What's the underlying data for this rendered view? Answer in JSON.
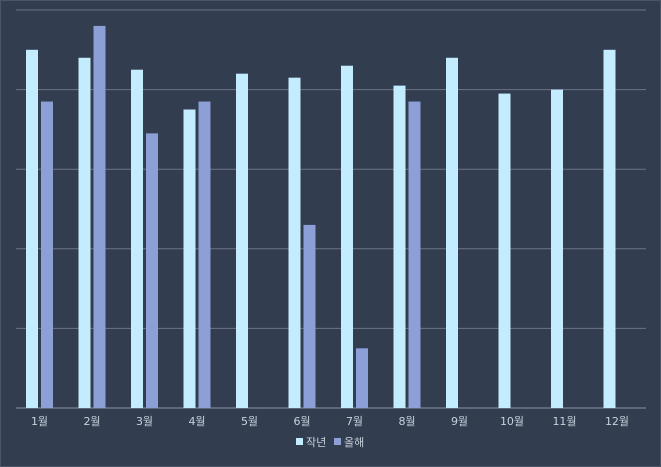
{
  "chart_data": {
    "type": "bar",
    "categories": [
      "1월",
      "2월",
      "3월",
      "4월",
      "5월",
      "6월",
      "7월",
      "8월",
      "9월",
      "10월",
      "11월",
      "12월"
    ],
    "series": [
      {
        "name": "작년",
        "color": "#c4ecff",
        "values": [
          90,
          88,
          85,
          75,
          84,
          83,
          86,
          81,
          88,
          79,
          80,
          90
        ]
      },
      {
        "name": "올해",
        "color": "#8c9fd6",
        "values": [
          77,
          96,
          69,
          77,
          null,
          46,
          15,
          77,
          null,
          null,
          null,
          null
        ]
      }
    ],
    "ylim": [
      0,
      100
    ],
    "grid": true,
    "legend": "bottom-center"
  }
}
